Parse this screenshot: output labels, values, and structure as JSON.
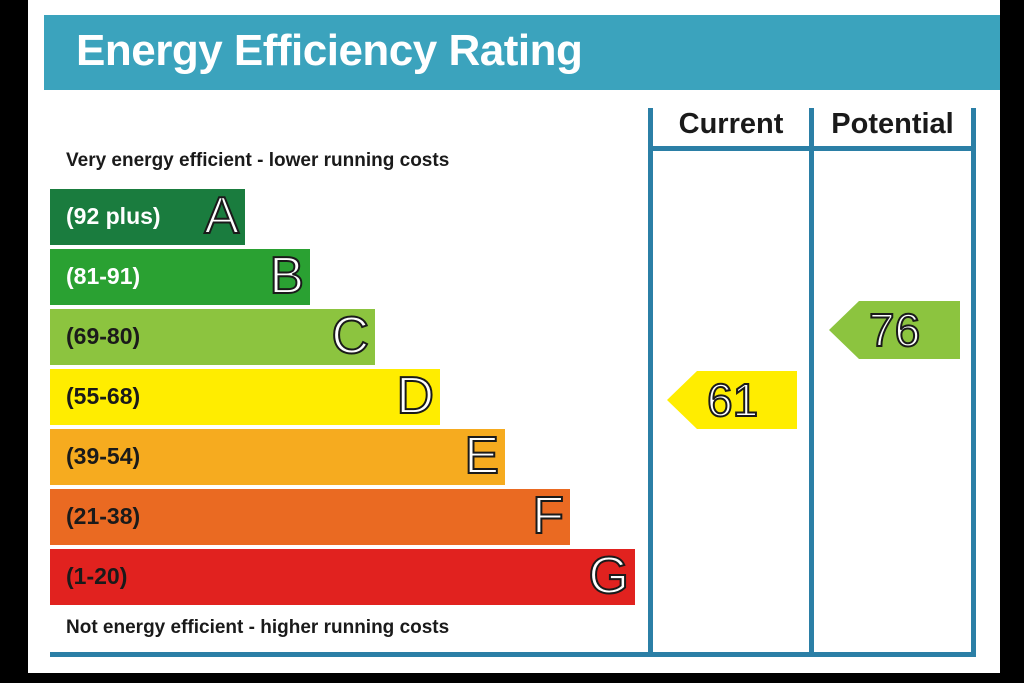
{
  "chart_data": {
    "type": "bar",
    "title": "Energy Efficiency Rating",
    "top_caption": "Very energy efficient - lower running costs",
    "bottom_caption": "Not energy efficient - higher running costs",
    "columns": [
      "Current",
      "Potential"
    ],
    "bands": [
      {
        "letter": "A",
        "range": "(92 plus)",
        "color": "#1a7c3e",
        "text_color": "#ffffff"
      },
      {
        "letter": "B",
        "range": "(81-91)",
        "color": "#2aa132",
        "text_color": "#ffffff"
      },
      {
        "letter": "C",
        "range": "(69-80)",
        "color": "#8cc43f",
        "text_color": "#1a1a1a"
      },
      {
        "letter": "D",
        "range": "(55-68)",
        "color": "#ffed00",
        "text_color": "#1a1a1a"
      },
      {
        "letter": "E",
        "range": "(39-54)",
        "color": "#f6ab1f",
        "text_color": "#1a1a1a"
      },
      {
        "letter": "F",
        "range": "(21-38)",
        "color": "#ea6a22",
        "text_color": "#1a1a1a"
      },
      {
        "letter": "G",
        "range": "(1-20)",
        "color": "#e1221f",
        "text_color": "#1a1a1a"
      }
    ],
    "current": {
      "value": "61",
      "band": "D",
      "color": "#ffed00"
    },
    "potential": {
      "value": "76",
      "band": "C",
      "color": "#8cc43f"
    }
  }
}
